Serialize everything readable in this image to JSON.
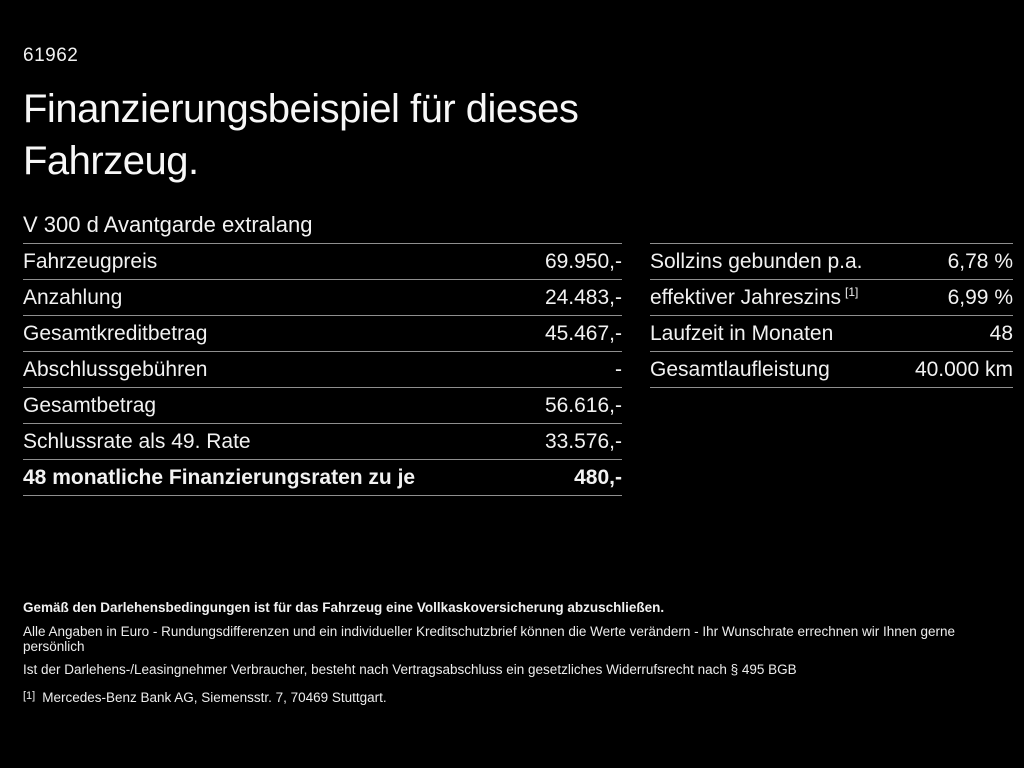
{
  "colors": {
    "background": "#000000",
    "text": "#f2f2f2",
    "divider": "#8f8f8f"
  },
  "header": {
    "doc_number": "61962",
    "title": "Finanzierungsbeispiel für dieses Fahrzeug.",
    "vehicle_model": "V 300 d Avantgarde extralang"
  },
  "financing_table": {
    "rows": [
      {
        "label": "Fahrzeugpreis",
        "value": "69.950,-"
      },
      {
        "label": "Anzahlung",
        "value": "24.483,-"
      },
      {
        "label": "Gesamtkreditbetrag",
        "value": "45.467,-"
      },
      {
        "label": "Abschlussgebühren",
        "value": "-"
      },
      {
        "label": "Gesamtbetrag",
        "value": "56.616,-"
      },
      {
        "label": "Schlussrate als 49. Rate",
        "value": "33.576,-"
      },
      {
        "label": "48 monatliche Finanzierungsraten zu je",
        "value": "480,-"
      }
    ]
  },
  "conditions_table": {
    "rows": [
      {
        "label": "Sollzins gebunden p.a.",
        "value": "6,78 %"
      },
      {
        "label": "effektiver Jahreszins",
        "footnote_ref": "[1]",
        "value": "6,99 %"
      },
      {
        "label": "Laufzeit in Monaten",
        "value": "48"
      },
      {
        "label": "Gesamtlaufleistung",
        "value": "40.000 km"
      }
    ]
  },
  "footer": {
    "insurance_note": "Gemäß den Darlehensbedingungen ist für das Fahrzeug eine Vollkaskoversicherung abzuschließen.",
    "note_line1": "Alle Angaben in Euro - Rundungsdifferenzen und ein individueller Kreditschutzbrief können die Werte verändern - Ihr Wunschrate errechnen wir Ihnen gerne persönlich",
    "note_line2": "Ist der Darlehens-/Leasingnehmer Verbraucher, besteht nach Vertragsabschluss ein gesetzliches Widerrufsrecht nach § 495 BGB",
    "footnote_marker": "[1]",
    "footnote_text": "Mercedes-Benz Bank AG, Siemensstr. 7, 70469 Stuttgart."
  }
}
